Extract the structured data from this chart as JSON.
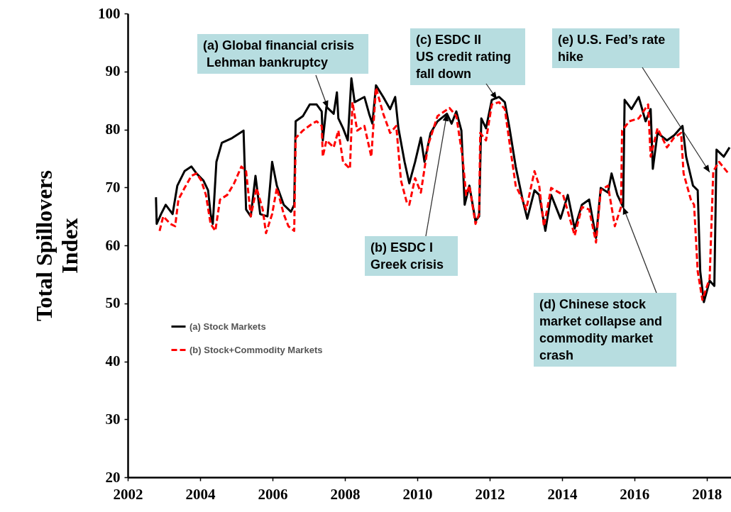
{
  "chart_data": {
    "type": "line",
    "ylabel": "Total Spillovers Index",
    "xlim": [
      2002,
      2018.67
    ],
    "xticks": [
      2002,
      2004,
      2006,
      2008,
      2010,
      2012,
      2014,
      2016,
      2018
    ],
    "ylim": [
      20,
      100
    ],
    "yticks": [
      20,
      30,
      40,
      50,
      60,
      70,
      80,
      90,
      100
    ],
    "grid": false,
    "legend": "left",
    "series": [
      {
        "name": "(a) Stock Markets",
        "color": "#000000",
        "line_style": "solid",
        "x": [
          2002.78,
          2002.8,
          2002.92,
          2003.05,
          2003.24,
          2003.37,
          2003.57,
          2003.76,
          2003.9,
          2004.09,
          2004.22,
          2004.29,
          2004.35,
          2004.45,
          2004.6,
          2004.88,
          2005.2,
          2005.27,
          2005.4,
          2005.53,
          2005.66,
          2005.86,
          2005.99,
          2006.12,
          2006.31,
          2006.51,
          2006.6,
          2006.64,
          2006.84,
          2007.03,
          2007.22,
          2007.36,
          2007.39,
          2007.49,
          2007.69,
          2007.78,
          2007.82,
          2007.95,
          2008.08,
          2008.18,
          2008.27,
          2008.54,
          2008.67,
          2008.76,
          2008.86,
          2009.06,
          2009.25,
          2009.39,
          2009.48,
          2009.65,
          2009.78,
          2009.94,
          2010.1,
          2010.2,
          2010.37,
          2010.56,
          2010.82,
          2010.95,
          2011.08,
          2011.22,
          2011.31,
          2011.44,
          2011.61,
          2011.71,
          2011.77,
          2011.9,
          2012.06,
          2012.26,
          2012.42,
          2012.55,
          2012.72,
          2012.91,
          2013.04,
          2013.24,
          2013.37,
          2013.54,
          2013.7,
          2013.96,
          2014.16,
          2014.35,
          2014.55,
          2014.75,
          2014.94,
          2015.07,
          2015.27,
          2015.37,
          2015.53,
          2015.69,
          2015.73,
          2015.92,
          2016.12,
          2016.31,
          2016.45,
          2016.51,
          2016.64,
          2016.9,
          2017.1,
          2017.33,
          2017.43,
          2017.62,
          2017.75,
          2017.82,
          2017.92,
          2018.08,
          2018.21,
          2018.27,
          2018.47,
          2018.63
        ],
        "values": [
          68.3,
          63.7,
          65.4,
          67,
          65.4,
          70.3,
          72.8,
          73.6,
          72.4,
          71.2,
          69.5,
          65.4,
          63.7,
          74.4,
          77.7,
          78.5,
          79.8,
          66.2,
          65,
          72,
          65.4,
          65,
          74.4,
          70.3,
          67,
          65.8,
          67,
          81.4,
          82.3,
          84.3,
          84.3,
          83.1,
          78.1,
          83.9,
          82.7,
          86.4,
          81.9,
          80.2,
          78.1,
          88.8,
          84.7,
          85.6,
          82.7,
          81,
          87.6,
          85.6,
          83.5,
          85.6,
          80.2,
          74.4,
          70.7,
          74.4,
          78.6,
          74.4,
          79.4,
          81.4,
          82.7,
          81,
          83.1,
          79.8,
          67,
          70.3,
          64.2,
          65,
          81.9,
          80.2,
          85.1,
          85.6,
          84.7,
          80.2,
          73.6,
          67.9,
          64.6,
          69.5,
          68.7,
          62.5,
          68.7,
          64.6,
          68.7,
          62.9,
          67,
          67.9,
          61.3,
          69.9,
          69.1,
          72.4,
          68.7,
          66.6,
          85.1,
          83.5,
          85.6,
          81.4,
          83.5,
          73.2,
          79.4,
          78.1,
          79,
          80.6,
          75.3,
          70.3,
          69.5,
          55.5,
          50.2,
          53.9,
          53,
          76.5,
          75.3,
          76.9
        ]
      },
      {
        "name": "(b) Stock+Commodity Markets",
        "color": "#ff0000",
        "line_style": "dashed",
        "x": [
          2002.88,
          2002.98,
          2003.18,
          2003.31,
          2003.4,
          2003.57,
          2003.76,
          2003.9,
          2004.03,
          2004.16,
          2004.29,
          2004.42,
          2004.55,
          2004.75,
          2004.94,
          2005.14,
          2005.27,
          2005.4,
          2005.56,
          2005.73,
          2005.82,
          2005.99,
          2006.12,
          2006.31,
          2006.44,
          2006.6,
          2006.64,
          2006.84,
          2007.1,
          2007.22,
          2007.36,
          2007.39,
          2007.49,
          2007.69,
          2007.82,
          2007.95,
          2008.14,
          2008.21,
          2008.34,
          2008.54,
          2008.73,
          2008.86,
          2009.06,
          2009.25,
          2009.42,
          2009.55,
          2009.71,
          2009.78,
          2009.94,
          2010.1,
          2010.3,
          2010.56,
          2010.89,
          2011.08,
          2011.25,
          2011.35,
          2011.44,
          2011.61,
          2011.71,
          2011.74,
          2011.9,
          2012.06,
          2012.26,
          2012.42,
          2012.55,
          2012.72,
          2012.91,
          2013.01,
          2013.24,
          2013.37,
          2013.5,
          2013.7,
          2014.03,
          2014.35,
          2014.55,
          2014.75,
          2014.94,
          2015.07,
          2015.27,
          2015.46,
          2015.63,
          2015.66,
          2015.86,
          2016.12,
          2016.38,
          2016.45,
          2016.64,
          2016.9,
          2017.1,
          2017.29,
          2017.36,
          2017.56,
          2017.65,
          2017.75,
          2017.88,
          2018.08,
          2018.18,
          2018.34,
          2018.6
        ],
        "values": [
          62.5,
          65,
          63.7,
          63.3,
          67.9,
          69.9,
          72,
          72.4,
          71.2,
          68.7,
          63.7,
          62.5,
          67.9,
          68.7,
          70.7,
          73.6,
          72.8,
          65,
          69.9,
          66.2,
          62.1,
          65.4,
          69.9,
          65.4,
          63.3,
          62.5,
          78.5,
          79.8,
          81,
          81.4,
          80.6,
          75.3,
          78.1,
          76.9,
          79.8,
          74.4,
          73.2,
          84.7,
          79.8,
          80.6,
          75.3,
          87.2,
          82.7,
          79.4,
          80.6,
          71.2,
          67.4,
          67,
          71.6,
          69.1,
          77.3,
          82.3,
          83.7,
          82.3,
          75.3,
          68.7,
          70.3,
          63.7,
          65.4,
          79.4,
          78.1,
          84.3,
          84.7,
          83.5,
          77.7,
          70.3,
          67.9,
          66.2,
          72.8,
          70.3,
          63.3,
          69.9,
          68.7,
          61.7,
          66.6,
          66.2,
          60.5,
          69.5,
          70.3,
          63.3,
          66.6,
          79.8,
          81.4,
          81.9,
          84.3,
          75.3,
          80.2,
          76.9,
          78.6,
          79.4,
          72.4,
          67.9,
          67,
          55.5,
          50.6,
          54.3,
          72.8,
          74.4,
          72.4
        ]
      }
    ],
    "annotations": [
      {
        "text": "(a) Global financial crisis\n Lehman bankruptcy",
        "x": 2007.53,
        "y": 83.7
      },
      {
        "text": "(b) ESDC I\nGreek crisis",
        "x": 2010.82,
        "y": 82.7
      },
      {
        "text": "(c) ESDC II\nUS credit rating\nfall down",
        "x": 2012.2,
        "y": 85.2
      },
      {
        "text": "(d) Chinese stock\nmarket collapse and\ncommodity market\ncrash",
        "x": 2015.69,
        "y": 66.6
      },
      {
        "text": "(e) U.S. Fed’s rate\nhike",
        "x": 2018.08,
        "y": 72.6
      }
    ]
  }
}
